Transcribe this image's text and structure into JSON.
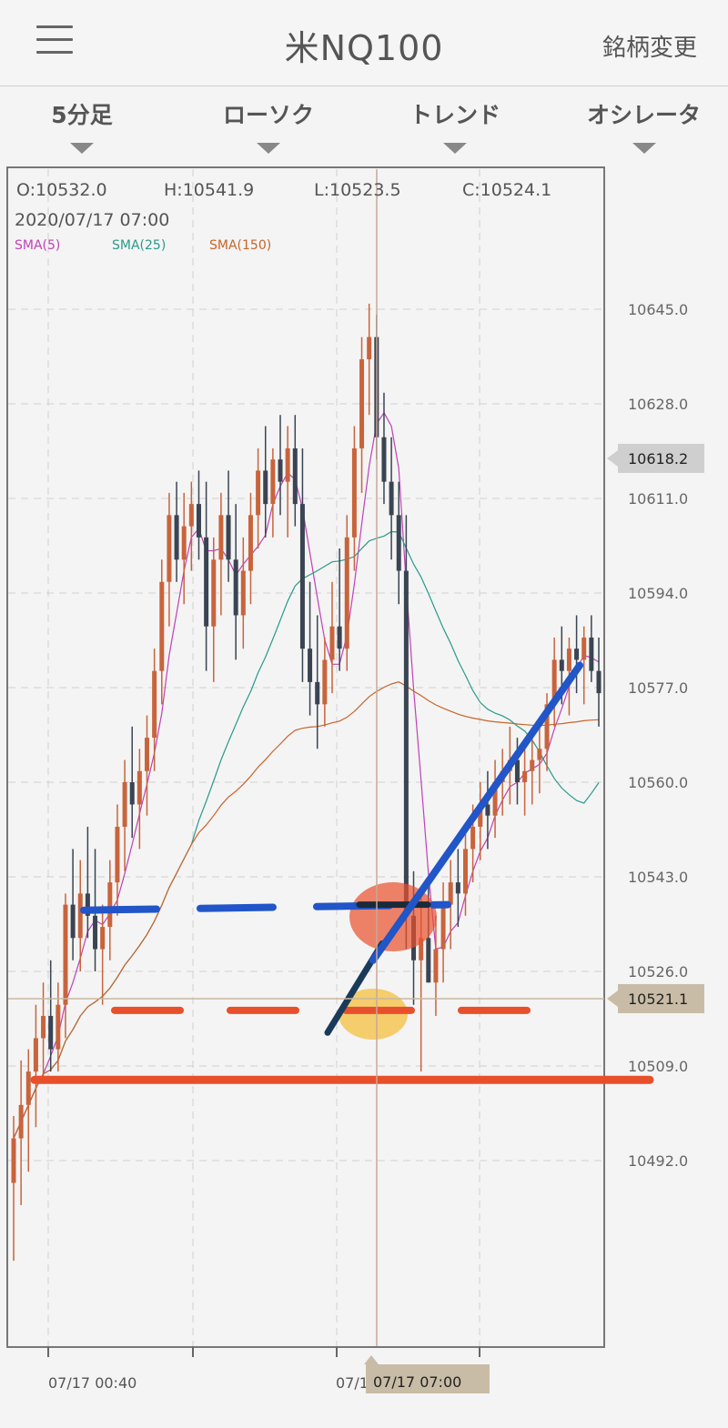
{
  "header": {
    "title": "米NQ100",
    "change_label": "銘柄変更"
  },
  "tabs": [
    {
      "label": "5分足"
    },
    {
      "label": "ローソク"
    },
    {
      "label": "トレンド"
    },
    {
      "label": "オシレータ"
    }
  ],
  "ohlc": {
    "open": "O:10532.0",
    "high": "H:10541.9",
    "low": "L:10523.5",
    "close": "C:10524.1",
    "datetime": "2020/07/17 07:00"
  },
  "legend": [
    {
      "name": "SMA(5)",
      "color": "#c040b8"
    },
    {
      "name": "SMA(25)",
      "color": "#2a9a8a"
    },
    {
      "name": "SMA(150)",
      "color": "#c8642a"
    }
  ],
  "colors": {
    "up": "#c8643c",
    "down": "#3a4452",
    "trend_blue": "#2155c8",
    "level_red": "#e8502c",
    "highlight_yellow": "#f5c040"
  },
  "chart_data": {
    "type": "candlestick",
    "ylim": [
      10460,
      10672
    ],
    "y_ticks": [
      "10645.0",
      "10628.0",
      "10611.0",
      "10594.0",
      "10577.0",
      "10560.0",
      "10543.0",
      "10526.0",
      "10509.0",
      "10492.0"
    ],
    "y_tick_values": [
      10645,
      10628,
      10611,
      10594,
      10577,
      10560,
      10543,
      10526,
      10509,
      10492
    ],
    "current_price_label": "10618.2",
    "current_price": 10618.2,
    "crosshair_price_label": "10521.1",
    "crosshair_price": 10521.1,
    "x_ticks": [
      "07/17 00:40",
      "07/1"
    ],
    "crosshair_time_label": "07/17 07:00",
    "candles": [
      [
        10488,
        10500,
        10474,
        10496
      ],
      [
        10496,
        10510,
        10484,
        10502
      ],
      [
        10502,
        10512,
        10490,
        10508
      ],
      [
        10508,
        10520,
        10498,
        10514
      ],
      [
        10514,
        10524,
        10506,
        10518
      ],
      [
        10518,
        10528,
        10508,
        10512
      ],
      [
        10512,
        10524,
        10508,
        10520
      ],
      [
        10520,
        10540,
        10514,
        10538
      ],
      [
        10538,
        10548,
        10528,
        10532
      ],
      [
        10532,
        10546,
        10526,
        10540
      ],
      [
        10540,
        10552,
        10532,
        10536
      ],
      [
        10536,
        10548,
        10526,
        10530
      ],
      [
        10530,
        10538,
        10520,
        10534
      ],
      [
        10534,
        10546,
        10528,
        10542
      ],
      [
        10542,
        10556,
        10536,
        10552
      ],
      [
        10552,
        10564,
        10544,
        10560
      ],
      [
        10560,
        10570,
        10550,
        10556
      ],
      [
        10556,
        10566,
        10548,
        10562
      ],
      [
        10562,
        10572,
        10554,
        10568
      ],
      [
        10568,
        10584,
        10562,
        10580
      ],
      [
        10580,
        10600,
        10574,
        10596
      ],
      [
        10596,
        10612,
        10588,
        10608
      ],
      [
        10608,
        10614,
        10596,
        10600
      ],
      [
        10600,
        10612,
        10592,
        10606
      ],
      [
        10606,
        10614,
        10598,
        10610
      ],
      [
        10610,
        10616,
        10600,
        10604
      ],
      [
        10604,
        10614,
        10580,
        10588
      ],
      [
        10588,
        10604,
        10578,
        10600
      ],
      [
        10600,
        10612,
        10590,
        10608
      ],
      [
        10608,
        10616,
        10596,
        10600
      ],
      [
        10600,
        10610,
        10582,
        10590
      ],
      [
        10590,
        10604,
        10584,
        10598
      ],
      [
        10598,
        10612,
        10592,
        10608
      ],
      [
        10608,
        10620,
        10602,
        10616
      ],
      [
        10616,
        10624,
        10604,
        10610
      ],
      [
        10610,
        10620,
        10604,
        10618
      ],
      [
        10618,
        10626,
        10608,
        10614
      ],
      [
        10614,
        10624,
        10604,
        10620
      ],
      [
        10620,
        10626,
        10606,
        10610
      ],
      [
        10610,
        10620,
        10578,
        10584
      ],
      [
        10584,
        10596,
        10572,
        10578
      ],
      [
        10578,
        10590,
        10566,
        10574
      ],
      [
        10574,
        10586,
        10570,
        10582
      ],
      [
        10582,
        10596,
        10576,
        10588
      ],
      [
        10588,
        10602,
        10580,
        10584
      ],
      [
        10584,
        10608,
        10580,
        10604
      ],
      [
        10604,
        10624,
        10598,
        10620
      ],
      [
        10620,
        10640,
        10612,
        10636
      ],
      [
        10636,
        10646,
        10626,
        10640
      ],
      [
        10640,
        10644,
        10618,
        10622
      ],
      [
        10622,
        10630,
        10610,
        10614
      ],
      [
        10614,
        10622,
        10600,
        10608
      ],
      [
        10608,
        10614,
        10592,
        10598
      ],
      [
        10598,
        10608,
        10530,
        10536
      ],
      [
        10536,
        10544,
        10520,
        10528
      ],
      [
        10528,
        10540,
        10508,
        10532
      ],
      [
        10532,
        10542,
        10524,
        10524
      ],
      [
        10524,
        10536,
        10518,
        10530
      ],
      [
        10530,
        10542,
        10524,
        10538
      ],
      [
        10538,
        10546,
        10530,
        10542
      ],
      [
        10542,
        10548,
        10534,
        10540
      ],
      [
        10540,
        10552,
        10536,
        10548
      ],
      [
        10548,
        10556,
        10542,
        10552
      ],
      [
        10552,
        10560,
        10546,
        10556
      ],
      [
        10556,
        10562,
        10548,
        10554
      ],
      [
        10554,
        10564,
        10550,
        10560
      ],
      [
        10560,
        10566,
        10554,
        10562
      ],
      [
        10562,
        10570,
        10556,
        10564
      ],
      [
        10564,
        10568,
        10556,
        10560
      ],
      [
        10560,
        10566,
        10554,
        10562
      ],
      [
        10562,
        10568,
        10556,
        10564
      ],
      [
        10564,
        10570,
        10558,
        10566
      ],
      [
        10566,
        10576,
        10562,
        10574
      ],
      [
        10574,
        10586,
        10570,
        10582
      ],
      [
        10582,
        10588,
        10574,
        10580
      ],
      [
        10580,
        10586,
        10572,
        10584
      ],
      [
        10584,
        10590,
        10576,
        10582
      ],
      [
        10582,
        10588,
        10574,
        10586
      ],
      [
        10586,
        10590,
        10578,
        10580
      ],
      [
        10580,
        10586,
        10570,
        10576
      ]
    ]
  }
}
